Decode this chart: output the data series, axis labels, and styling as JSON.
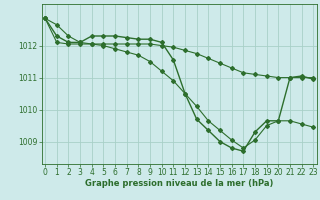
{
  "background_color": "#ceeaea",
  "grid_color": "#a8d0c8",
  "line_color": "#2d6e2d",
  "x_ticks": [
    0,
    1,
    2,
    3,
    4,
    5,
    6,
    7,
    8,
    9,
    10,
    11,
    12,
    13,
    14,
    15,
    16,
    17,
    18,
    19,
    20,
    21,
    22,
    23
  ],
  "y_ticks": [
    1009,
    1010,
    1011,
    1012
  ],
  "ylim": [
    1008.3,
    1013.3
  ],
  "xlim": [
    -0.3,
    23.3
  ],
  "line1_x": [
    0,
    1,
    2,
    3,
    4,
    5,
    6,
    7,
    8,
    9,
    10,
    11,
    12,
    13,
    14,
    15,
    16,
    17,
    18,
    19,
    20,
    21,
    22,
    23
  ],
  "line1_y": [
    1012.85,
    1012.65,
    1012.3,
    1012.1,
    1012.05,
    1012.05,
    1012.05,
    1012.05,
    1012.05,
    1012.05,
    1012.0,
    1011.95,
    1011.85,
    1011.75,
    1011.6,
    1011.45,
    1011.3,
    1011.15,
    1011.1,
    1011.05,
    1011.0,
    1011.0,
    1011.0,
    1011.0
  ],
  "line2_x": [
    0,
    1,
    2,
    3,
    4,
    5,
    6,
    7,
    8,
    9,
    10,
    11,
    12,
    13,
    14,
    15,
    16,
    17,
    18,
    19,
    20,
    21,
    22,
    23
  ],
  "line2_y": [
    1012.85,
    1012.3,
    1012.1,
    1012.1,
    1012.3,
    1012.3,
    1012.3,
    1012.25,
    1012.2,
    1012.2,
    1012.1,
    1011.55,
    1010.5,
    1009.7,
    1009.35,
    1009.0,
    1008.8,
    1008.7,
    1009.3,
    1009.65,
    1009.65,
    1011.0,
    1011.05,
    1010.95
  ],
  "line3_x": [
    0,
    1,
    2,
    3,
    4,
    5,
    6,
    7,
    8,
    9,
    10,
    11,
    12,
    13,
    14,
    15,
    16,
    17,
    18,
    19,
    20,
    21,
    22,
    23
  ],
  "line3_y": [
    1012.85,
    1012.1,
    1012.05,
    1012.05,
    1012.05,
    1012.0,
    1011.9,
    1011.8,
    1011.7,
    1011.5,
    1011.2,
    1010.9,
    1010.5,
    1010.1,
    1009.65,
    1009.35,
    1009.05,
    1008.8,
    1009.05,
    1009.5,
    1009.65,
    1009.65,
    1009.55,
    1009.45
  ],
  "xlabel": "Graphe pression niveau de la mer (hPa)",
  "xlabel_color": "#2d6e2d",
  "xlabel_fontsize": 6.0,
  "tick_fontsize": 5.5,
  "marker_size": 2.0,
  "linewidth": 0.8
}
